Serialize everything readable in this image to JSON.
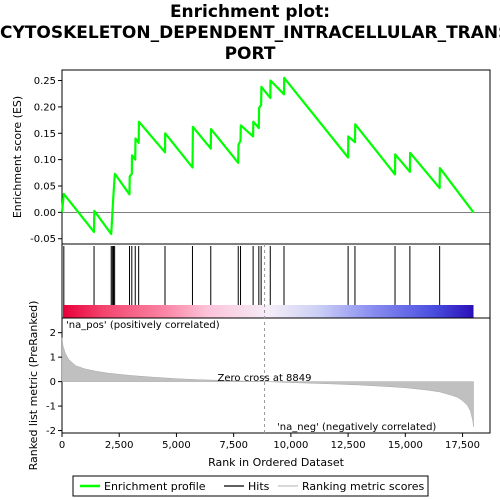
{
  "title_lines": [
    "Enrichment plot:",
    "CYTOSKELETON_DEPENDENT_INTRACELLULAR_TRANS",
    "PORT"
  ],
  "chart_data": {
    "type": "line",
    "top_panel": {
      "ylabel": "Enrichment score (ES)",
      "ylim": [
        -0.06,
        0.27
      ],
      "yticks": [
        -0.05,
        0.0,
        0.05,
        0.1,
        0.15,
        0.2,
        0.25
      ],
      "ytick_labels": [
        "-0.05",
        "0.00",
        "0.05",
        "0.10",
        "0.15",
        "0.20",
        "0.25"
      ],
      "series": [
        {
          "name": "Enrichment profile",
          "color": "#00ff00",
          "x": [
            0,
            80,
            1400,
            1410,
            2150,
            2160,
            2200,
            2210,
            2250,
            2260,
            2300,
            2310,
            2950,
            2960,
            3050,
            3060,
            3200,
            3210,
            3350,
            3360,
            4500,
            4510,
            5700,
            5710,
            5720,
            6500,
            6510,
            7700,
            7710,
            7800,
            7810,
            8350,
            8360,
            8600,
            8610,
            8700,
            8710,
            9100,
            9110,
            9700,
            9710,
            12500,
            12510,
            12800,
            12810,
            14550,
            14560,
            15200,
            15210,
            16500,
            16510,
            17980
          ],
          "y": [
            0.0,
            0.035,
            -0.037,
            0.003,
            -0.041,
            -0.035,
            0.0,
            0.005,
            0.035,
            0.04,
            0.067,
            0.073,
            0.034,
            0.068,
            0.073,
            0.108,
            0.1,
            0.14,
            0.132,
            0.172,
            0.114,
            0.15,
            0.085,
            0.12,
            0.162,
            0.121,
            0.158,
            0.094,
            0.128,
            0.136,
            0.165,
            0.144,
            0.172,
            0.16,
            0.198,
            0.204,
            0.238,
            0.217,
            0.25,
            0.224,
            0.255,
            0.104,
            0.144,
            0.133,
            0.167,
            0.072,
            0.11,
            0.077,
            0.113,
            0.046,
            0.084,
            0.0
          ]
        }
      ]
    },
    "hits": {
      "name": "Hits",
      "positions": [
        80,
        1400,
        2150,
        2200,
        2250,
        2300,
        2950,
        3050,
        3200,
        3350,
        4500,
        5700,
        6500,
        7700,
        7800,
        8350,
        8600,
        8700,
        9100,
        9700,
        12500,
        12800,
        14550,
        15200,
        16500
      ]
    },
    "color_bar": {
      "stops": [
        {
          "pos": 0.0,
          "color": "#e8003a"
        },
        {
          "pos": 0.1,
          "color": "#f3456e"
        },
        {
          "pos": 0.25,
          "color": "#fa86a6"
        },
        {
          "pos": 0.35,
          "color": "#fcc2d8"
        },
        {
          "pos": 0.5,
          "color": "#f5eef8"
        },
        {
          "pos": 0.62,
          "color": "#cdd0f5"
        },
        {
          "pos": 0.75,
          "color": "#8b8ff0"
        },
        {
          "pos": 0.9,
          "color": "#4b4fe0"
        },
        {
          "pos": 1.0,
          "color": "#2a10b8"
        }
      ]
    },
    "bottom_panel": {
      "name": "Ranking metric scores",
      "ylabel": "Ranked list metric (PreRanked)",
      "xlabel": "Rank in Ordered Dataset",
      "ylim": [
        -2.1,
        2.6
      ],
      "yticks": [
        -2,
        -1,
        0,
        1,
        2
      ],
      "ytick_labels": [
        "-2",
        "-1",
        "0",
        "1",
        "2"
      ],
      "metric_x": [
        0,
        50,
        150,
        300,
        600,
        1000,
        1500,
        2000,
        3000,
        4000,
        5000,
        6000,
        7000,
        8000,
        8849,
        10000,
        11000,
        12000,
        13000,
        14000,
        15000,
        16000,
        16500,
        17000,
        17300,
        17500,
        17700,
        17850,
        17950,
        17980
      ],
      "metric_y": [
        1.8,
        1.45,
        1.15,
        0.9,
        0.65,
        0.52,
        0.42,
        0.35,
        0.25,
        0.18,
        0.12,
        0.08,
        0.05,
        0.02,
        0.0,
        -0.04,
        -0.07,
        -0.1,
        -0.14,
        -0.19,
        -0.25,
        -0.35,
        -0.42,
        -0.55,
        -0.65,
        -0.78,
        -0.95,
        -1.2,
        -1.6,
        -1.85
      ],
      "zero_cross": 8849,
      "zero_cross_label": "Zero cross at 8849",
      "pos_label": "'na_pos' (positively correlated)",
      "neg_label": "'na_neg' (negatively correlated)"
    },
    "xlim": [
      0,
      18700
    ],
    "xticks": [
      0,
      2500,
      5000,
      7500,
      10000,
      12500,
      15000,
      17500
    ],
    "xtick_labels": [
      "0",
      "2,500",
      "5,000",
      "7,500",
      "10,000",
      "12,500",
      "15,000",
      "17,500"
    ],
    "legend": {
      "placement": "bottom",
      "items": [
        {
          "label": "Enrichment profile",
          "color": "#00ff00"
        },
        {
          "label": "Hits",
          "color": "#000000"
        },
        {
          "label": "Ranking metric scores",
          "color": "#c0c0c0"
        }
      ]
    }
  }
}
